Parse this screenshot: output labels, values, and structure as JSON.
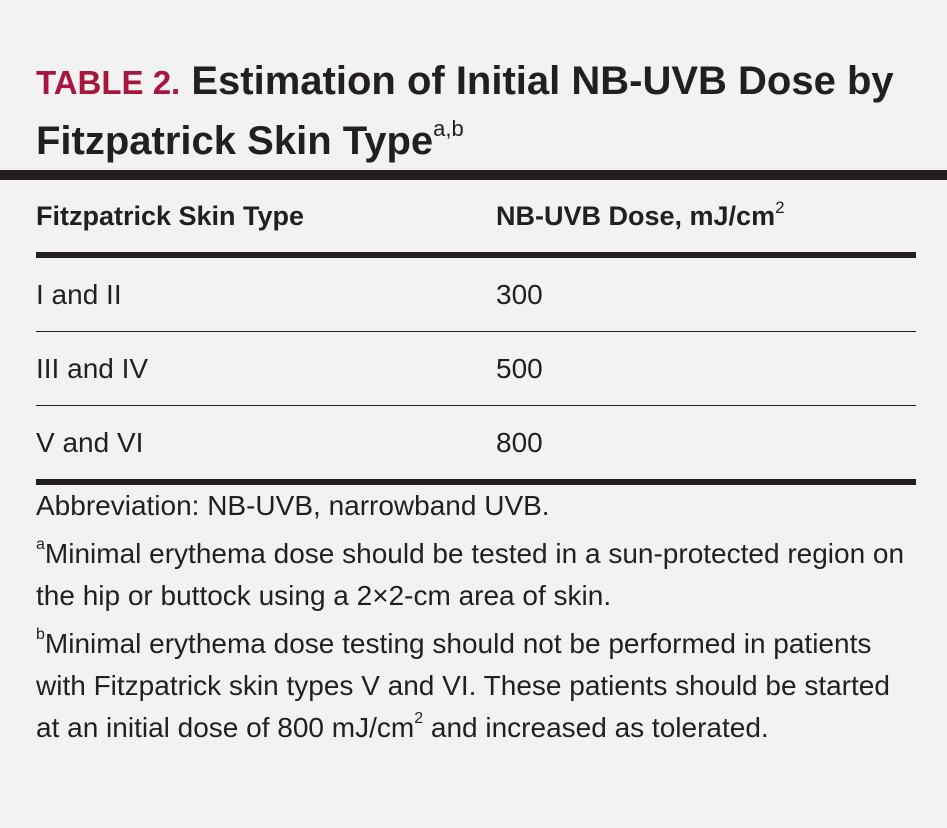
{
  "title": {
    "label": "TABLE 2.",
    "heading": "Estimation of Initial NB-UVB Dose by Fitzpatrick Skin Type",
    "footnote_marks": "a,b"
  },
  "table": {
    "header": {
      "col1": "Fitzpatrick Skin Type",
      "col2": "NB-UVB Dose, mJ/cm",
      "col2_superscript": "2"
    },
    "rows": [
      {
        "skin_type": "I and II",
        "dose": "300"
      },
      {
        "skin_type": "III and IV",
        "dose": "500"
      },
      {
        "skin_type": "V and VI",
        "dose": "800"
      }
    ]
  },
  "notes": {
    "abbreviation": "Abbreviation: NB-UVB, narrowband UVB.",
    "footnote_a_mark": "a",
    "footnote_a_text": "Minimal erythema dose should be tested in a sun-protected region on the hip or buttock using a 2×2-cm area of skin.",
    "footnote_b_mark": "b",
    "footnote_b_text_1": "Minimal erythema dose testing should not be performed in patients with Fitzpatrick skin types V and VI. These patients should be started at an initial dose of 800 mJ/cm",
    "footnote_b_superscript": "2",
    "footnote_b_text_2": " and increased as tolerated."
  },
  "colors": {
    "label": "#a6173f",
    "text": "#231f20",
    "background": "#f2f2f2"
  }
}
